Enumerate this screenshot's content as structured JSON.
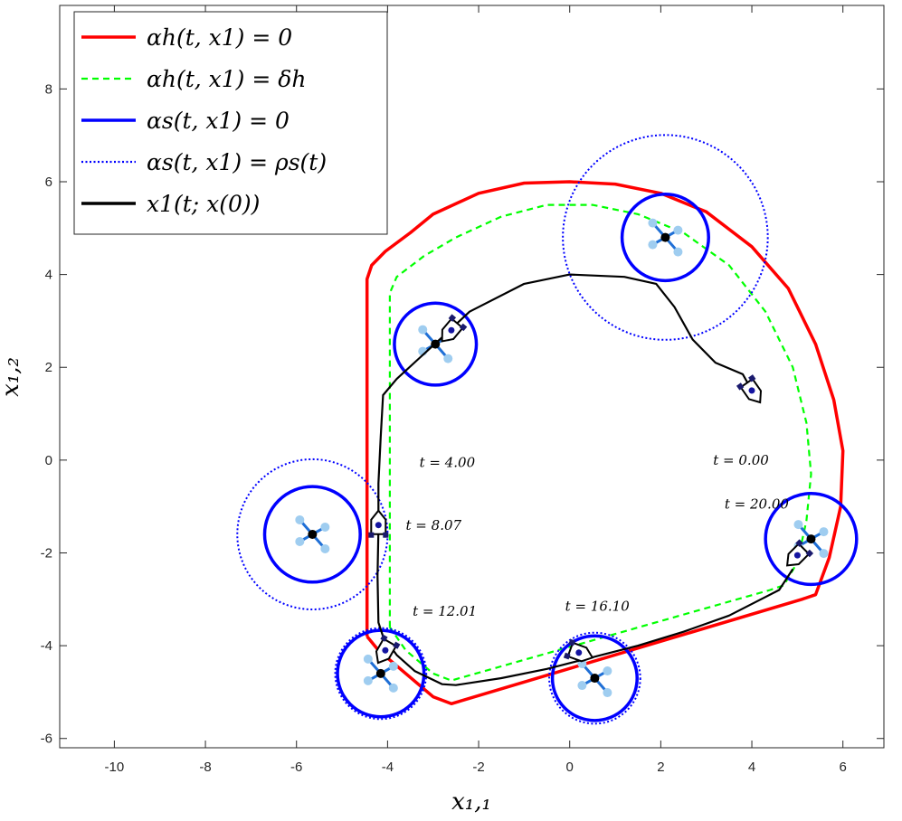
{
  "chart_data": {
    "type": "line",
    "xlabel": "x₁,₁",
    "ylabel": "x₁,₂",
    "xlim": [
      -11.2,
      6.9
    ],
    "ylim": [
      -6.2,
      9.8
    ],
    "xticks": [
      -10,
      -8,
      -6,
      -4,
      -2,
      0,
      2,
      4,
      6
    ],
    "yticks": [
      -6,
      -4,
      -2,
      0,
      2,
      4,
      6,
      8
    ],
    "xtick_labels": [
      "-10",
      "-8",
      "-6",
      "-4",
      "-2",
      "0",
      "2",
      "4",
      "6"
    ],
    "ytick_labels": [
      "-6",
      "-4",
      "-2",
      "0",
      "2",
      "4",
      "6",
      "8"
    ],
    "grid": false,
    "legend_position": "top-left",
    "legend": [
      {
        "label": "αh(t, x1) = 0",
        "color": "#ff0000",
        "style": "solid"
      },
      {
        "label": "αh(t, x1) = δh",
        "color": "#00ff00",
        "style": "dashed"
      },
      {
        "label": "αs(t, x1) = 0",
        "color": "#0000ff",
        "style": "solid"
      },
      {
        "label": "αs(t, x1) = ρs(t)",
        "color": "#0000ff",
        "style": "dotted"
      },
      {
        "label": "x1(t; x(0))",
        "color": "#000000",
        "style": "solid"
      }
    ],
    "series": [
      {
        "id": "alpha_h_zero",
        "points": [
          [
            -4.45,
            -3.8
          ],
          [
            -4.45,
            3.9
          ],
          [
            -4.35,
            4.2
          ],
          [
            -4.05,
            4.5
          ],
          [
            -3.5,
            4.9
          ],
          [
            -3.0,
            5.3
          ],
          [
            -2.0,
            5.75
          ],
          [
            -1.0,
            5.97
          ],
          [
            0,
            6.0
          ],
          [
            1.0,
            5.95
          ],
          [
            2.0,
            5.75
          ],
          [
            3.0,
            5.35
          ],
          [
            4.0,
            4.6
          ],
          [
            4.8,
            3.7
          ],
          [
            5.4,
            2.5
          ],
          [
            5.8,
            1.3
          ],
          [
            6.0,
            0.2
          ],
          [
            5.95,
            -1.0
          ],
          [
            5.7,
            -2.1
          ],
          [
            5.4,
            -2.9
          ],
          [
            5.1,
            -3.0
          ],
          [
            -2.6,
            -5.25
          ],
          [
            -3.0,
            -5.1
          ],
          [
            -3.6,
            -4.6
          ],
          [
            -4.2,
            -4.1
          ],
          [
            -4.45,
            -3.8
          ]
        ]
      },
      {
        "id": "alpha_h_delta",
        "points": [
          [
            -3.95,
            -3.6
          ],
          [
            -3.95,
            3.6
          ],
          [
            -3.8,
            3.95
          ],
          [
            -3.2,
            4.4
          ],
          [
            -2.5,
            4.8
          ],
          [
            -1.5,
            5.25
          ],
          [
            -0.5,
            5.5
          ],
          [
            0.5,
            5.5
          ],
          [
            1.5,
            5.3
          ],
          [
            2.5,
            4.9
          ],
          [
            3.5,
            4.2
          ],
          [
            4.3,
            3.2
          ],
          [
            4.9,
            2.0
          ],
          [
            5.2,
            0.8
          ],
          [
            5.3,
            -0.3
          ],
          [
            5.2,
            -1.3
          ],
          [
            5.0,
            -2.2
          ],
          [
            4.7,
            -2.7
          ],
          [
            4.4,
            -2.8
          ],
          [
            -2.6,
            -4.75
          ],
          [
            -3.0,
            -4.6
          ],
          [
            -3.6,
            -4.1
          ],
          [
            -3.95,
            -3.6
          ]
        ]
      },
      {
        "id": "trajectory",
        "points": [
          [
            4.0,
            1.5
          ],
          [
            3.8,
            1.85
          ],
          [
            3.2,
            2.1
          ],
          [
            2.7,
            2.6
          ],
          [
            2.3,
            3.3
          ],
          [
            1.9,
            3.8
          ],
          [
            1.2,
            3.95
          ],
          [
            0,
            4.0
          ],
          [
            -1.0,
            3.8
          ],
          [
            -2.2,
            3.2
          ],
          [
            -2.8,
            2.65
          ],
          [
            -3.3,
            2.2
          ],
          [
            -3.8,
            1.75
          ],
          [
            -4.1,
            1.4
          ],
          [
            -4.15,
            0.5
          ],
          [
            -4.2,
            -0.5
          ],
          [
            -4.2,
            -1.5
          ],
          [
            -4.22,
            -2.5
          ],
          [
            -4.2,
            -3.5
          ],
          [
            -4.1,
            -3.8
          ],
          [
            -3.8,
            -4.2
          ],
          [
            -3.4,
            -4.55
          ],
          [
            -2.8,
            -4.83
          ],
          [
            -2.5,
            -4.85
          ],
          [
            -1.5,
            -4.7
          ],
          [
            -0.5,
            -4.5
          ],
          [
            0.5,
            -4.25
          ],
          [
            1.5,
            -4.0
          ],
          [
            2.5,
            -3.7
          ],
          [
            3.5,
            -3.35
          ],
          [
            4.2,
            -3.0
          ],
          [
            4.6,
            -2.8
          ],
          [
            4.9,
            -2.35
          ]
        ]
      }
    ],
    "safe_circles": [
      {
        "center": [
          -2.95,
          2.5
        ],
        "r": 0.9,
        "outer_r": null
      },
      {
        "center": [
          2.1,
          4.8
        ],
        "r": 0.95,
        "outer_r": 2.25
      },
      {
        "center": [
          -5.65,
          -1.6
        ],
        "r": 1.05,
        "outer_r": 1.65
      },
      {
        "center": [
          -4.15,
          -4.6
        ],
        "r": 0.95,
        "outer_r": 1.0
      },
      {
        "center": [
          0.55,
          -4.7
        ],
        "r": 0.93,
        "outer_r": 1.0
      },
      {
        "center": [
          5.3,
          -1.7
        ],
        "r": 1.0,
        "outer_r": null
      }
    ],
    "annotations": [
      {
        "text": "t = 0.00",
        "x": 3.15,
        "y": -0.1
      },
      {
        "text": "t = 4.00",
        "x": -3.3,
        "y": -0.15
      },
      {
        "text": "t = 8.07",
        "x": -3.6,
        "y": -1.5
      },
      {
        "text": "t = 12.01",
        "x": -3.45,
        "y": -3.35
      },
      {
        "text": "t = 16.10",
        "x": -0.1,
        "y": -3.25
      },
      {
        "text": "t = 20.00",
        "x": 3.4,
        "y": -1.05
      }
    ]
  }
}
